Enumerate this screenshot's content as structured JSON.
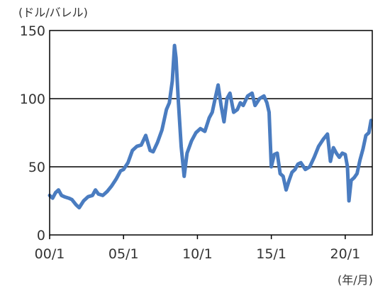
{
  "chart_data": {
    "type": "line",
    "title": "",
    "ylabel": "(ドル/バレル)",
    "xlabel": "(年/月)",
    "ylim": [
      0,
      150
    ],
    "yticks": [
      0,
      50,
      100,
      150
    ],
    "xlim": [
      2000.0,
      2021.83
    ],
    "xticks": [
      {
        "value": 2000.0,
        "label": "00/1"
      },
      {
        "value": 2005.0,
        "label": "05/1"
      },
      {
        "value": 2010.0,
        "label": "10/1"
      },
      {
        "value": 2015.0,
        "label": "15/1"
      },
      {
        "value": 2020.0,
        "label": "20/1"
      }
    ],
    "grid": "horizontal",
    "legend": "none",
    "colors": {
      "line": "#4a7cc0",
      "grid": "#000000",
      "axis": "#000000",
      "text": "#333333"
    },
    "series": [
      {
        "x": [
          2000.0,
          2000.2,
          2000.4,
          2000.6,
          2000.8,
          2001.0,
          2001.3,
          2001.5,
          2001.8,
          2002.0,
          2002.3,
          2002.6,
          2002.9,
          2003.1,
          2003.3,
          2003.6,
          2003.9,
          2004.2,
          2004.5,
          2004.8,
          2005.0,
          2005.3,
          2005.6,
          2005.9,
          2006.2,
          2006.5,
          2006.8,
          2007.0,
          2007.3,
          2007.6,
          2007.9,
          2008.1,
          2008.3,
          2008.45,
          2008.55,
          2008.7,
          2008.9,
          2009.1,
          2009.3,
          2009.6,
          2009.9,
          2010.2,
          2010.5,
          2010.8,
          2011.0,
          2011.2,
          2011.4,
          2011.6,
          2011.8,
          2012.0,
          2012.2,
          2012.45,
          2012.7,
          2012.9,
          2013.1,
          2013.4,
          2013.7,
          2013.9,
          2014.2,
          2014.5,
          2014.7,
          2014.85,
          2015.0,
          2015.2,
          2015.4,
          2015.6,
          2015.8,
          2016.0,
          2016.2,
          2016.4,
          2016.6,
          2016.8,
          2017.0,
          2017.3,
          2017.6,
          2017.9,
          2018.2,
          2018.5,
          2018.8,
          2019.0,
          2019.2,
          2019.4,
          2019.6,
          2019.8,
          2020.0,
          2020.15,
          2020.25,
          2020.4,
          2020.6,
          2020.8,
          2021.0,
          2021.2,
          2021.4,
          2021.6,
          2021.75
        ],
        "y": [
          29,
          27,
          31,
          33,
          29,
          28,
          27,
          26,
          22,
          20,
          25,
          28,
          29,
          33,
          30,
          29,
          32,
          36,
          41,
          47,
          48,
          53,
          62,
          65,
          66,
          73,
          62,
          61,
          68,
          77,
          92,
          97,
          113,
          139,
          130,
          100,
          65,
          43,
          60,
          69,
          75,
          78,
          76,
          86,
          90,
          100,
          110,
          95,
          83,
          100,
          104,
          90,
          92,
          97,
          95,
          102,
          104,
          95,
          100,
          102,
          97,
          90,
          50,
          59,
          60,
          45,
          43,
          33,
          40,
          46,
          48,
          52,
          53,
          48,
          50,
          57,
          65,
          70,
          74,
          54,
          64,
          60,
          57,
          60,
          59,
          50,
          25,
          40,
          42,
          45,
          55,
          63,
          73,
          75,
          84
        ]
      }
    ]
  }
}
